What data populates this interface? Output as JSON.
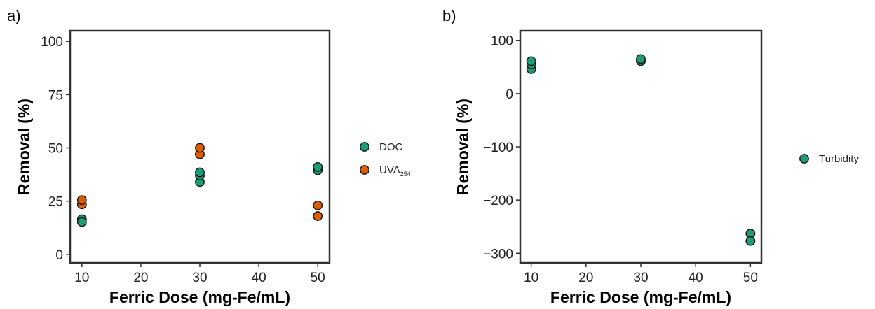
{
  "chart_data": [
    {
      "panel": "a)",
      "type": "scatter",
      "title": "",
      "xlabel": "Ferric Dose (mg-Fe/mL)",
      "ylabel": "Removal (%)",
      "xlim": [
        8,
        52
      ],
      "ylim": [
        -4,
        105
      ],
      "xticks": [
        10,
        20,
        30,
        40,
        50
      ],
      "yticks": [
        0,
        25,
        50,
        75,
        100
      ],
      "grid": false,
      "legend_position": "right",
      "series": [
        {
          "name": "DOC",
          "name_sub": "",
          "color": "#1b9e77",
          "points": [
            [
              10,
              16.5
            ],
            [
              10,
              15.2
            ],
            [
              30,
              34
            ],
            [
              30,
              37
            ],
            [
              30,
              38.5
            ],
            [
              50,
              39.5
            ],
            [
              50,
              41
            ]
          ]
        },
        {
          "name": "UVA",
          "name_sub": "254",
          "color": "#d95f02",
          "points": [
            [
              10,
              23.5
            ],
            [
              10,
              25.5
            ],
            [
              30,
              47
            ],
            [
              30,
              50
            ],
            [
              50,
              18
            ],
            [
              50,
              23
            ]
          ]
        }
      ]
    },
    {
      "panel": "b)",
      "type": "scatter",
      "title": "",
      "xlabel": "Ferric Dose (mg-Fe/mL)",
      "ylabel": "Removal (%)",
      "xlim": [
        8,
        52
      ],
      "ylim": [
        -318,
        118
      ],
      "xticks": [
        10,
        20,
        30,
        40,
        50
      ],
      "yticks": [
        -300,
        -200,
        -100,
        0,
        100
      ],
      "grid": false,
      "legend_position": "right",
      "series": [
        {
          "name": "Turbidity",
          "name_sub": "",
          "color": "#1b9e77",
          "points": [
            [
              10,
              46
            ],
            [
              10,
              55
            ],
            [
              10,
              61
            ],
            [
              30,
              61
            ],
            [
              30,
              65
            ],
            [
              50,
              -263
            ],
            [
              50,
              -277
            ]
          ]
        }
      ]
    }
  ]
}
